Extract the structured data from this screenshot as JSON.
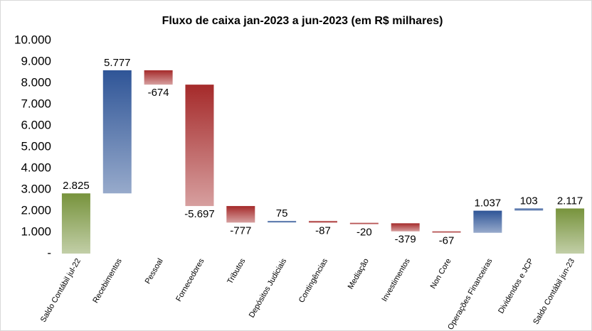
{
  "chart_data": {
    "type": "waterfall",
    "title": "Fluxo de caixa jan-2023 a jun-2023 (em R$ milhares)",
    "categories": [
      "Saldo Contábil jul-22",
      "Recebimentos",
      "Pessoal",
      "Fornecedores",
      "Tributos",
      "Depósitos Judiciais",
      "Contingências",
      "Mediação",
      "Investimentos",
      "Non Core",
      "Operações Financeiras",
      "Dividendos e JCP",
      "Saldo Contábil jun-23"
    ],
    "values": [
      2825,
      5777,
      -674,
      -5697,
      -777,
      75,
      -87,
      -20,
      -379,
      -67,
      1037,
      103,
      2117
    ],
    "value_labels": [
      "2.825",
      "5.777",
      "-674",
      "-5.697",
      "-777",
      "75",
      "-87",
      "-20",
      "-379",
      "-67",
      "1.037",
      "103",
      "2.117"
    ],
    "colors": {
      "total": "#77933c",
      "increase": "#2f5597",
      "decrease": "#a52a2a"
    },
    "ylim": [
      0,
      10000
    ],
    "yticks": [
      {
        "value": 0,
        "label": "-"
      },
      {
        "value": 1000,
        "label": "1.000"
      },
      {
        "value": 2000,
        "label": "2.000"
      },
      {
        "value": 3000,
        "label": "3.000"
      },
      {
        "value": 4000,
        "label": "4.000"
      },
      {
        "value": 5000,
        "label": "5.000"
      },
      {
        "value": 6000,
        "label": "6.000"
      },
      {
        "value": 7000,
        "label": "7.000"
      },
      {
        "value": 8000,
        "label": "8.000"
      },
      {
        "value": 9000,
        "label": "9.000"
      },
      {
        "value": 10000,
        "label": "10.000"
      }
    ],
    "grid": false
  }
}
